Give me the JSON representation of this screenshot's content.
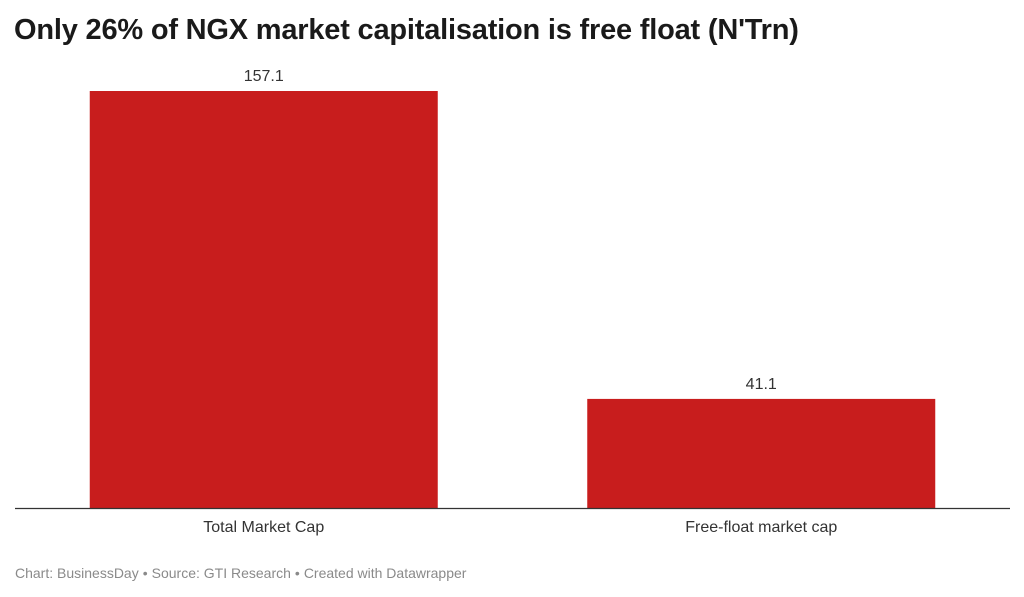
{
  "chart_data": {
    "type": "bar",
    "title": "Only 26% of NGX market capitalisation is free float (N'Trn)",
    "categories": [
      "Total Market Cap",
      "Free-float market cap"
    ],
    "values": [
      157.1,
      41.1
    ],
    "value_labels": [
      "157.1",
      "41.1"
    ],
    "xlabel": "",
    "ylabel": "",
    "ylim": [
      0,
      157.1
    ],
    "grid": false,
    "legend": "none",
    "bar_color": "#c81d1d"
  },
  "footer": {
    "chart_credit": "Chart: BusinessDay",
    "source": "Source: GTI Research",
    "tool": "Created with Datawrapper",
    "separator": "•"
  }
}
